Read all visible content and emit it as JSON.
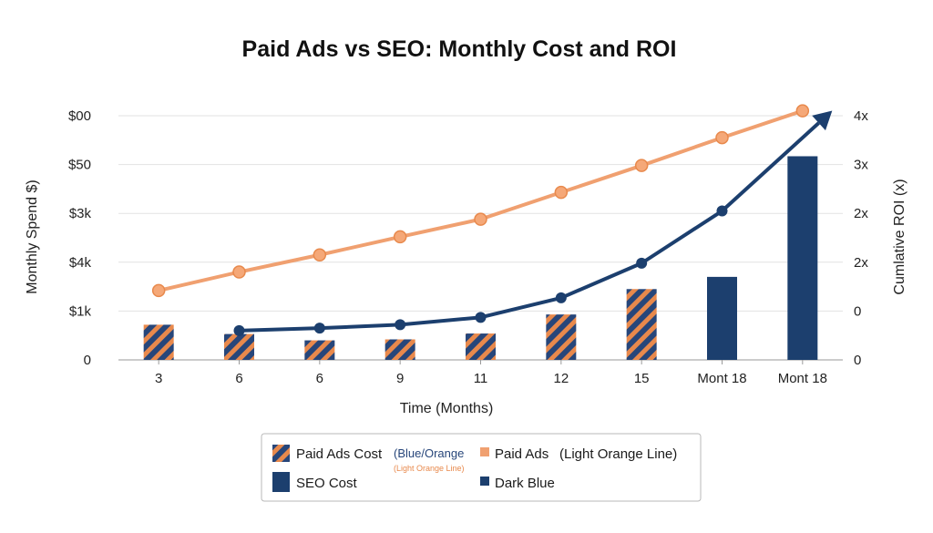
{
  "chart_data": {
    "type": "bar",
    "title": "Paid Ads vs SEO: Monthly Cost and ROI",
    "xlabel": "Time (Months)",
    "ylabel": "Monthly Spend $)",
    "y2label": "Cumlative ROI (x)",
    "categories": [
      "3",
      "6",
      "6",
      "9",
      "11",
      "12",
      "15",
      "Mont 18",
      "Mont 18"
    ],
    "y_tick_labels": [
      "0",
      "$1k",
      "$4k",
      "$3k",
      "$50",
      "$00"
    ],
    "y2_tick_labels": [
      "0",
      "0",
      "2x",
      "2x",
      "3x",
      "4x"
    ],
    "ylim": [
      0,
      5
    ],
    "y2lim": [
      0,
      5
    ],
    "grid": true,
    "legend_position": "bottom",
    "series": [
      {
        "name": "Paid Ads Cost",
        "kind": "bar",
        "pattern": "striped",
        "color": "#27467a",
        "stripe_color": "#e8894c",
        "values": [
          0.72,
          0.53,
          0.4,
          0.42,
          0.54,
          0.93,
          1.45,
          null,
          null
        ]
      },
      {
        "name": "SEO Cost",
        "kind": "bar",
        "pattern": "solid",
        "color": "#1c3f6e",
        "values": [
          null,
          null,
          null,
          null,
          null,
          null,
          null,
          1.7,
          4.17
        ]
      },
      {
        "name": "Paid Ads",
        "kind": "line",
        "axis": "y2",
        "color": "#f0a070",
        "marker_color": "#f5a878",
        "values": [
          1.42,
          1.8,
          2.15,
          2.52,
          2.88,
          3.43,
          3.98,
          4.55,
          5.1
        ]
      },
      {
        "name": "Dark Blue",
        "kind": "line",
        "axis": "y2",
        "color": "#1c3f6e",
        "values": [
          null,
          0.6,
          0.65,
          0.72,
          0.87,
          1.27,
          1.98,
          3.05,
          4.55
        ],
        "arrow_end": true
      }
    ]
  },
  "legend": {
    "items": [
      {
        "label": "Paid Ads Cost",
        "note": "(Blue/Orange",
        "subnote": "(Light Orange Line)",
        "swatch": "striped"
      },
      {
        "label": "Paid Ads",
        "note": "(Light Orange Line)",
        "swatch": "orange-square"
      },
      {
        "label": "SEO Cost",
        "swatch": "blue-block"
      },
      {
        "label": "Dark Blue",
        "swatch": "blue-square"
      }
    ]
  }
}
